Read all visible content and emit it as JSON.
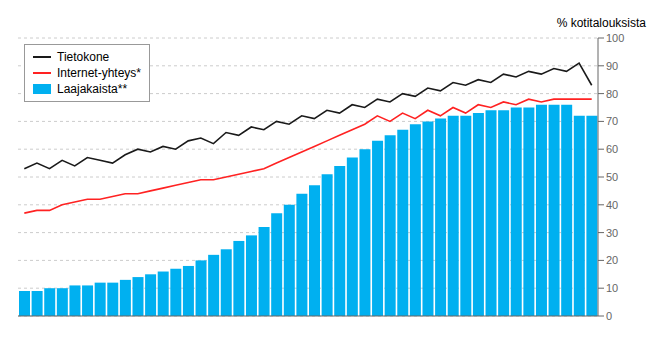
{
  "chart_data": {
    "type": "bar",
    "y_label": "% kotitalouksista",
    "categories": [
      null,
      null,
      null,
      null,
      null,
      null,
      null,
      null,
      null,
      null,
      null,
      null,
      null,
      null,
      null,
      null,
      null,
      null,
      null,
      null,
      null,
      null,
      null,
      null,
      null,
      null,
      null,
      null,
      null,
      null,
      null,
      null,
      null,
      null,
      null,
      null,
      null,
      null,
      null,
      null,
      null,
      null,
      null,
      null,
      null,
      null
    ],
    "series": [
      {
        "name": "Tietokone",
        "type": "line",
        "color": "#1a1a1a",
        "values": [
          53,
          55,
          53,
          56,
          54,
          57,
          56,
          55,
          58,
          60,
          59,
          61,
          60,
          63,
          64,
          62,
          66,
          65,
          68,
          67,
          70,
          69,
          72,
          71,
          74,
          73,
          76,
          75,
          78,
          77,
          80,
          79,
          82,
          81,
          84,
          83,
          85,
          84,
          87,
          86,
          88,
          87,
          89,
          88,
          91,
          83
        ]
      },
      {
        "name": "Internet-yhteys*",
        "type": "line",
        "color": "#ff2222",
        "values": [
          37,
          38,
          38,
          40,
          41,
          42,
          42,
          43,
          44,
          44,
          45,
          46,
          47,
          48,
          49,
          49,
          50,
          51,
          52,
          53,
          55,
          57,
          59,
          61,
          63,
          65,
          67,
          69,
          72,
          70,
          73,
          71,
          74,
          72,
          75,
          73,
          76,
          75,
          77,
          76,
          78,
          77,
          78,
          78,
          78,
          78
        ]
      },
      {
        "name": "Laajakaista**",
        "type": "bar",
        "color": "#00b0f0",
        "values": [
          9,
          9,
          10,
          10,
          11,
          11,
          12,
          12,
          13,
          14,
          15,
          16,
          17,
          18,
          20,
          22,
          24,
          27,
          29,
          32,
          37,
          40,
          44,
          47,
          51,
          54,
          57,
          60,
          63,
          65,
          67,
          69,
          70,
          71,
          72,
          72,
          73,
          74,
          74,
          75,
          75,
          76,
          76,
          76,
          72,
          72
        ]
      }
    ],
    "ylim": [
      0,
      100
    ],
    "yticks": [
      0,
      10,
      20,
      30,
      40,
      50,
      60,
      70,
      80,
      90,
      100
    ],
    "grid": true,
    "legend": "upper left",
    "tick_labels": "y"
  }
}
